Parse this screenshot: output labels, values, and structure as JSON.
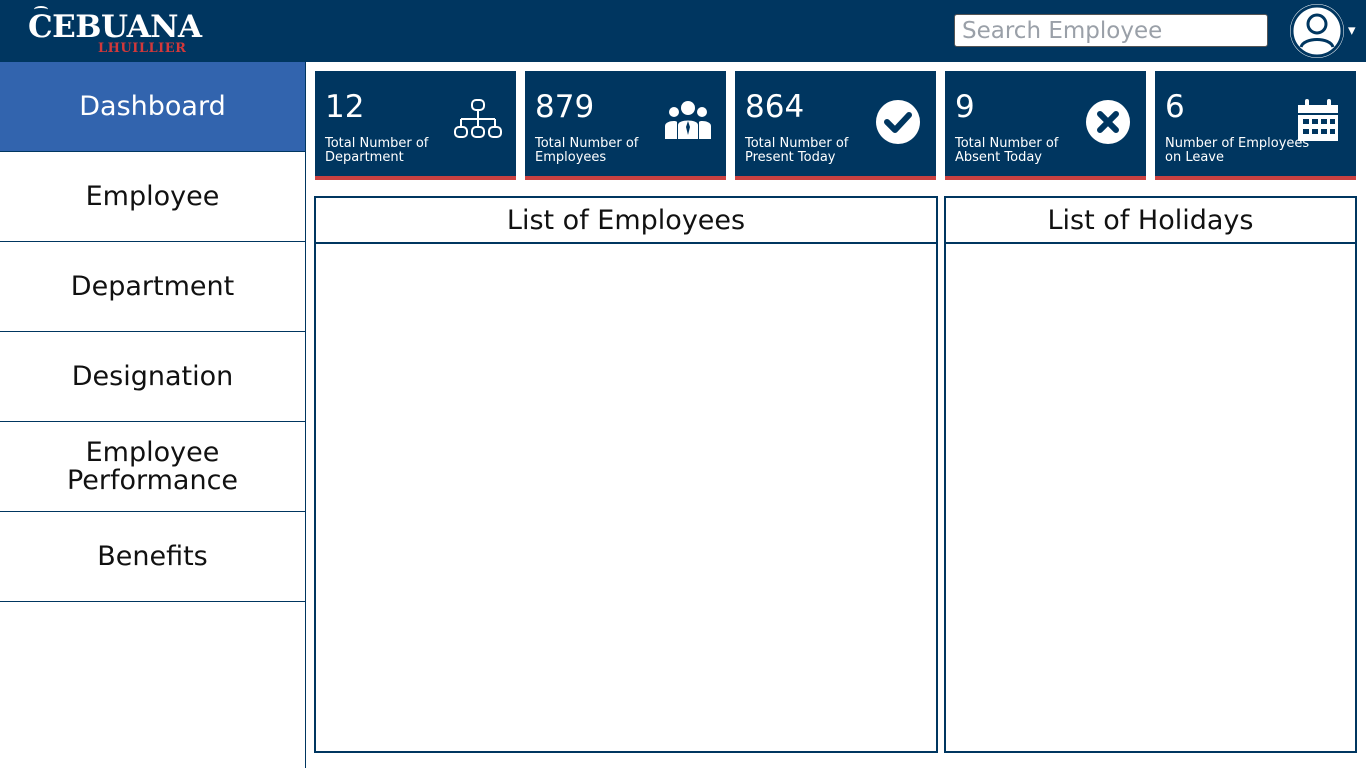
{
  "header": {
    "logo_main": "CEBUANA",
    "logo_sub": "LHUILLIER",
    "search_placeholder": "Search Employee",
    "caret": "▾"
  },
  "sidebar": {
    "items": [
      {
        "label": "Dashboard",
        "active": true
      },
      {
        "label": "Employee"
      },
      {
        "label": "Department"
      },
      {
        "label": "Designation"
      },
      {
        "label": "Employee Performance"
      },
      {
        "label": "Benefits"
      }
    ]
  },
  "stats": [
    {
      "value": "12",
      "label": "Total Number of Department",
      "icon": "org-chart-icon"
    },
    {
      "value": "879",
      "label": "Total Number of Employees",
      "icon": "users-icon"
    },
    {
      "value": "864",
      "label": "Total Number of Present Today",
      "icon": "check-circle-icon"
    },
    {
      "value": "9",
      "label": "Total Number of Absent Today",
      "icon": "x-circle-icon"
    },
    {
      "value": "6",
      "label": "Number of Employees on Leave",
      "icon": "calendar-icon"
    }
  ],
  "panels": {
    "employees_title": "List of Employees",
    "holidays_title": "List of Holidays"
  },
  "colors": {
    "header_bg": "#003660",
    "accent_blue": "#3264ae",
    "card_border": "#c94141",
    "logo_red": "#d2383a"
  }
}
